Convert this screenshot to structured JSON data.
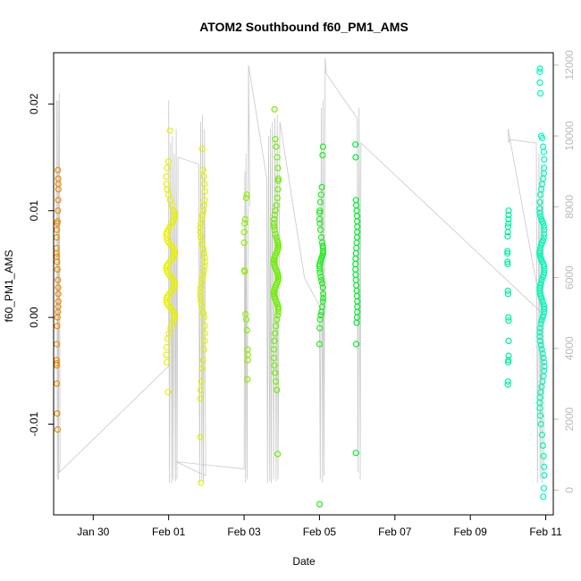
{
  "chart_data": {
    "type": "scatter",
    "title": "ATOM2 Southbound f60_PM1_AMS",
    "xlabel": "Date",
    "ylabel": "f60_PM1_AMS",
    "x_unit": "days (0 = Jan 30)",
    "xlim": [
      -1.05,
      12.2
    ],
    "ylim": [
      -0.0185,
      0.0248
    ],
    "y2lim": [
      -700,
      12350
    ],
    "x_ticks": [
      {
        "value": 0,
        "label": "Jan 30"
      },
      {
        "value": 2,
        "label": "Feb 01"
      },
      {
        "value": 4,
        "label": "Feb 03"
      },
      {
        "value": 6,
        "label": "Feb 05"
      },
      {
        "value": 8,
        "label": "Feb 07"
      },
      {
        "value": 10,
        "label": "Feb 09"
      },
      {
        "value": 12,
        "label": "Feb 11"
      }
    ],
    "y_ticks": [
      {
        "value": -0.01,
        "label": "-0.01"
      },
      {
        "value": 0.0,
        "label": "0.00"
      },
      {
        "value": 0.01,
        "label": "0.01"
      },
      {
        "value": 0.02,
        "label": "0.02"
      }
    ],
    "y2_ticks": [
      {
        "value": 0,
        "label": "0"
      },
      {
        "value": 2000,
        "label": "2000"
      },
      {
        "value": 4000,
        "label": "4000"
      },
      {
        "value": 6000,
        "label": "6000"
      },
      {
        "value": 8000,
        "label": "8000"
      },
      {
        "value": 10000,
        "label": "10000"
      },
      {
        "value": 12000,
        "label": "12000"
      }
    ],
    "grid": false,
    "colors": {
      "points_start": "#ff8800",
      "points_mid": "#ffff00",
      "points_green": "#00ee22",
      "points_end": "#00ffcc",
      "secondary_line": "#c8c8c8"
    },
    "clusters": [
      {
        "x_center": -0.95,
        "x_spread": 0.05,
        "color": "#ee8c00",
        "y": [
          0.0138,
          0.013,
          0.0125,
          0.012,
          0.011,
          0.01,
          0.009,
          0.0088,
          0.0082,
          0.0075,
          0.0065,
          0.006,
          0.0057,
          0.0052,
          0.0045,
          0.0035,
          0.0028,
          0.0022,
          0.0015,
          0.001,
          0.0005,
          0.0,
          -0.0008,
          -0.0025,
          -0.004,
          -0.0043,
          -0.0045,
          -0.0062,
          -0.009,
          -0.0105
        ]
      },
      {
        "x_center": 2.05,
        "x_spread": 0.22,
        "color": "#e9f000",
        "y": [
          0.0175,
          0.0146,
          0.014,
          0.0132,
          0.0125,
          0.012,
          0.0115,
          0.011,
          0.0105,
          0.01,
          0.0098,
          0.0095,
          0.0092,
          0.009,
          0.0088,
          0.0085,
          0.0082,
          0.008,
          0.0078,
          0.0075,
          0.0072,
          0.007,
          0.0068,
          0.0066,
          0.0064,
          0.0062,
          0.006,
          0.0058,
          0.0056,
          0.0054,
          0.0052,
          0.005,
          0.0048,
          0.0046,
          0.0044,
          0.0042,
          0.004,
          0.0038,
          0.0036,
          0.0034,
          0.0032,
          0.003,
          0.0028,
          0.0026,
          0.0024,
          0.0022,
          0.002,
          0.0018,
          0.0016,
          0.0014,
          0.0012,
          0.001,
          0.0008,
          0.0006,
          0.0004,
          0.0002,
          0.0,
          -0.0003,
          -0.0006,
          -0.001,
          -0.0015,
          -0.002,
          -0.0028,
          -0.0035,
          -0.0042,
          -0.007
        ]
      },
      {
        "x_center": 2.9,
        "x_spread": 0.12,
        "color": "#e2f200",
        "y": [
          0.0158,
          0.0138,
          0.0132,
          0.0125,
          0.0118,
          0.011,
          0.0105,
          0.01,
          0.0096,
          0.0092,
          0.0088,
          0.0084,
          0.008,
          0.0076,
          0.0072,
          0.0068,
          0.0064,
          0.006,
          0.0056,
          0.0052,
          0.0048,
          0.0044,
          0.004,
          0.0036,
          0.0032,
          0.0028,
          0.0024,
          0.002,
          0.0016,
          0.0012,
          0.0008,
          0.0004,
          0.0,
          -0.0008,
          -0.0015,
          -0.0022,
          -0.003,
          -0.004,
          -0.0048,
          -0.006,
          -0.0068,
          -0.0076,
          -0.0112,
          -0.0155
        ]
      },
      {
        "x_center": 4.05,
        "x_spread": 0.1,
        "color": "#8ef000",
        "y": [
          0.0115,
          0.0112,
          0.0092,
          0.0088,
          0.008,
          0.007,
          0.0044,
          0.0043,
          0.0003,
          -0.0002,
          -0.0012,
          -0.003,
          -0.0035,
          -0.004,
          -0.0058
        ]
      },
      {
        "x_center": 4.85,
        "x_spread": 0.12,
        "color": "#6ef000",
        "y": [
          0.0195,
          0.0167,
          0.016,
          0.015,
          0.014,
          0.013,
          0.0128,
          0.012,
          0.0112,
          0.0105,
          0.01,
          0.0096,
          0.0092,
          0.0088,
          0.0085,
          0.0082,
          0.0078,
          0.0075,
          0.0072,
          0.007,
          0.0068,
          0.0066,
          0.0064,
          0.0062,
          0.006,
          0.0058,
          0.0056,
          0.0054,
          0.0052,
          0.005,
          0.0048,
          0.0046,
          0.0044,
          0.0042,
          0.004,
          0.0038,
          0.0036,
          0.0034,
          0.0032,
          0.003,
          0.0028,
          0.0026,
          0.0024,
          0.0022,
          0.002,
          0.0018,
          0.0016,
          0.0014,
          0.0012,
          0.001,
          0.0008,
          0.0005,
          0.0002,
          -0.0002,
          -0.0008,
          -0.0015,
          -0.0022,
          -0.003,
          -0.0038,
          -0.0045,
          -0.0052,
          -0.006,
          -0.0068,
          -0.0128
        ]
      },
      {
        "x_center": 6.05,
        "x_spread": 0.1,
        "color": "#22ec22",
        "y": [
          0.016,
          0.0152,
          0.0122,
          0.0115,
          0.0108,
          0.01,
          0.0098,
          0.0092,
          0.0088,
          0.0082,
          0.0075,
          0.007,
          0.0067,
          0.0065,
          0.0062,
          0.006,
          0.0058,
          0.0056,
          0.0054,
          0.0052,
          0.005,
          0.0048,
          0.0045,
          0.0042,
          0.0038,
          0.0035,
          0.0032,
          0.0028,
          0.0022,
          0.0018,
          0.0015,
          0.001,
          0.0005,
          0.0002,
          -0.0002,
          -0.001,
          -0.0025,
          -0.0175
        ]
      },
      {
        "x_center": 6.98,
        "x_spread": 0.05,
        "color": "#00ee33",
        "y": [
          0.0162,
          0.015,
          0.011,
          0.0105,
          0.01,
          0.0095,
          0.009,
          0.0085,
          0.008,
          0.0075,
          0.007,
          0.0065,
          0.006,
          0.0055,
          0.005,
          0.0045,
          0.004,
          0.0035,
          0.003,
          0.0025,
          0.002,
          0.0015,
          0.001,
          0.0005,
          0.0,
          -0.0005,
          -0.0025,
          -0.0127
        ]
      },
      {
        "x_center": 11.0,
        "x_spread": 0.03,
        "color": "#00f0a0",
        "y": [
          0.01,
          0.0096,
          0.0092,
          0.0088,
          0.0085,
          0.008,
          0.0076,
          0.0062,
          0.006,
          0.0052,
          0.005,
          0.0025,
          0.0022,
          0.0,
          -0.0003,
          -0.0022,
          -0.0036,
          -0.004,
          -0.0042,
          -0.006,
          -0.0063
        ]
      },
      {
        "x_center": 11.9,
        "x_spread": 0.12,
        "color": "#00f8b8",
        "y": [
          0.0233,
          0.023,
          0.022,
          0.021,
          0.017,
          0.0168,
          0.016,
          0.0155,
          0.0148,
          0.014,
          0.0135,
          0.013,
          0.0125,
          0.012,
          0.0115,
          0.0108,
          0.0102,
          0.0098,
          0.0095,
          0.0092,
          0.009,
          0.0088,
          0.0085,
          0.0082,
          0.0078,
          0.0075,
          0.0072,
          0.007,
          0.0068,
          0.0065,
          0.0062,
          0.006,
          0.0058,
          0.0056,
          0.0054,
          0.0052,
          0.005,
          0.0048,
          0.0045,
          0.0042,
          0.004,
          0.0038,
          0.0035,
          0.0032,
          0.003,
          0.0028,
          0.0025,
          0.0022,
          0.002,
          0.0018,
          0.0015,
          0.0012,
          0.001,
          0.0008,
          0.0005,
          0.0002,
          0.0,
          -0.0003,
          -0.0006,
          -0.001,
          -0.0014,
          -0.0018,
          -0.0022,
          -0.0026,
          -0.003,
          -0.0034,
          -0.0038,
          -0.0042,
          -0.0046,
          -0.005,
          -0.0055,
          -0.006,
          -0.0065,
          -0.007,
          -0.0075,
          -0.008,
          -0.0085,
          -0.0092,
          -0.01,
          -0.011,
          -0.012,
          -0.013,
          -0.014,
          -0.0148,
          -0.016,
          -0.0168
        ]
      }
    ],
    "secondary_series": {
      "axis": "right",
      "points": [
        [
          -0.97,
          11000
        ],
        [
          -0.95,
          300
        ],
        [
          -0.93,
          11000
        ],
        [
          -0.92,
          300
        ],
        [
          -0.9,
          11200
        ],
        [
          -0.88,
          800
        ],
        [
          -0.9,
          500
        ],
        [
          2.0,
          3500
        ],
        [
          2.0,
          11000
        ],
        [
          2.02,
          200
        ],
        [
          2.05,
          9800
        ],
        [
          2.08,
          200
        ],
        [
          2.1,
          10000
        ],
        [
          2.12,
          300
        ],
        [
          2.15,
          9500
        ],
        [
          2.18,
          250
        ],
        [
          2.2,
          10200
        ],
        [
          2.22,
          300
        ],
        [
          2.25,
          9400
        ],
        [
          2.25,
          9400
        ],
        [
          2.8,
          9200
        ],
        [
          2.8,
          9200
        ],
        [
          2.82,
          200
        ],
        [
          2.85,
          10400
        ],
        [
          2.88,
          300
        ],
        [
          2.9,
          10600
        ],
        [
          2.92,
          200
        ],
        [
          2.95,
          10200
        ],
        [
          2.98,
          400
        ],
        [
          2.2,
          800
        ],
        [
          4.0,
          600
        ],
        [
          4.0,
          600
        ],
        [
          4.02,
          9000
        ],
        [
          4.04,
          200
        ],
        [
          4.05,
          9500
        ],
        [
          4.08,
          300
        ],
        [
          4.12,
          12000
        ],
        [
          4.15,
          8000
        ],
        [
          4.12,
          12000
        ],
        [
          4.6,
          8800
        ],
        [
          4.6,
          8800
        ],
        [
          4.62,
          200
        ],
        [
          4.65,
          10000
        ],
        [
          4.68,
          250
        ],
        [
          4.7,
          10200
        ],
        [
          4.72,
          200
        ],
        [
          4.75,
          10400
        ],
        [
          4.78,
          300
        ],
        [
          4.82,
          10500
        ],
        [
          4.85,
          250
        ],
        [
          4.88,
          10600
        ],
        [
          4.9,
          300
        ],
        [
          4.95,
          10400
        ],
        [
          4.95,
          10400
        ],
        [
          5.6,
          6000
        ],
        [
          6.0,
          5200
        ],
        [
          6.0,
          5200
        ],
        [
          6.02,
          300
        ],
        [
          6.05,
          10800
        ],
        [
          6.08,
          200
        ],
        [
          6.1,
          11000
        ],
        [
          6.12,
          400
        ],
        [
          6.15,
          12200
        ],
        [
          6.18,
          11800
        ],
        [
          6.15,
          11800
        ],
        [
          7.0,
          10500
        ],
        [
          7.0,
          10500
        ],
        [
          7.02,
          500
        ],
        [
          7.05,
          10800
        ],
        [
          7.08,
          300
        ],
        [
          7.1,
          9800
        ],
        [
          7.1,
          9800
        ],
        [
          11.9,
          5000
        ],
        [
          11.0,
          10200
        ],
        [
          11.02,
          9800
        ],
        [
          11.05,
          9900
        ],
        [
          11.05,
          9900
        ],
        [
          11.75,
          9800
        ],
        [
          11.75,
          9800
        ],
        [
          11.78,
          200
        ],
        [
          11.82,
          9500
        ],
        [
          11.85,
          300
        ],
        [
          11.88,
          9200
        ],
        [
          11.9,
          200
        ],
        [
          11.93,
          9000
        ],
        [
          11.95,
          300
        ]
      ]
    }
  }
}
